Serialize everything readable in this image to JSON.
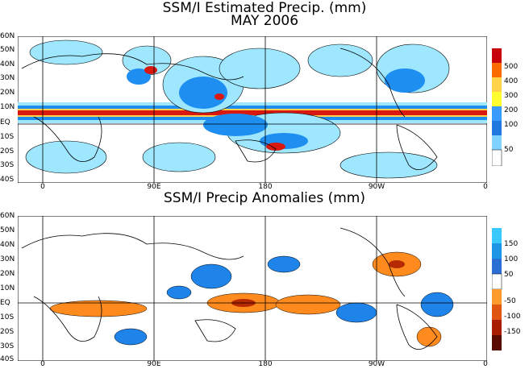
{
  "titles": {
    "panel1_line1": "SSM/I Estimated Precip. (mm)",
    "panel1_line2": "MAY 2006",
    "panel2": "SSM/I Precip Anomalies (mm)"
  },
  "lat_labels": [
    "60N",
    "50N",
    "40N",
    "30N",
    "20N",
    "10N",
    "EQ",
    "10S",
    "20S",
    "30S",
    "40S"
  ],
  "lon_labels": [
    "0",
    "90E",
    "180",
    "90W",
    "0"
  ],
  "colorbar_top": {
    "labels": [
      "500",
      "400",
      "300",
      "200",
      "100",
      "50"
    ],
    "colors": [
      "#c8000a",
      "#ff6a00",
      "#ffd24a",
      "#ffff30",
      "#3a9bff",
      "#1e78e0",
      "#7fd2ff",
      "#bff0ff"
    ]
  },
  "colorbar_bottom": {
    "labels": [
      "150",
      "100",
      "50",
      "-50",
      "-100",
      "-150"
    ],
    "colors": [
      "#39c8ff",
      "#1e96e6",
      "#2b6fd6",
      "#ffffff",
      "#ff9b2a",
      "#e0550f",
      "#a81c00",
      "#5a0b00"
    ]
  },
  "colors": {
    "precip_light": "#9ee7ff",
    "precip_mid": "#1e8ef0",
    "precip_heavy": "#ffd24a",
    "precip_extreme": "#d9180f",
    "anom_pos": "#1e84ea",
    "anom_neg": "#ff8a1e",
    "anom_neg_strong": "#b52a00"
  }
}
